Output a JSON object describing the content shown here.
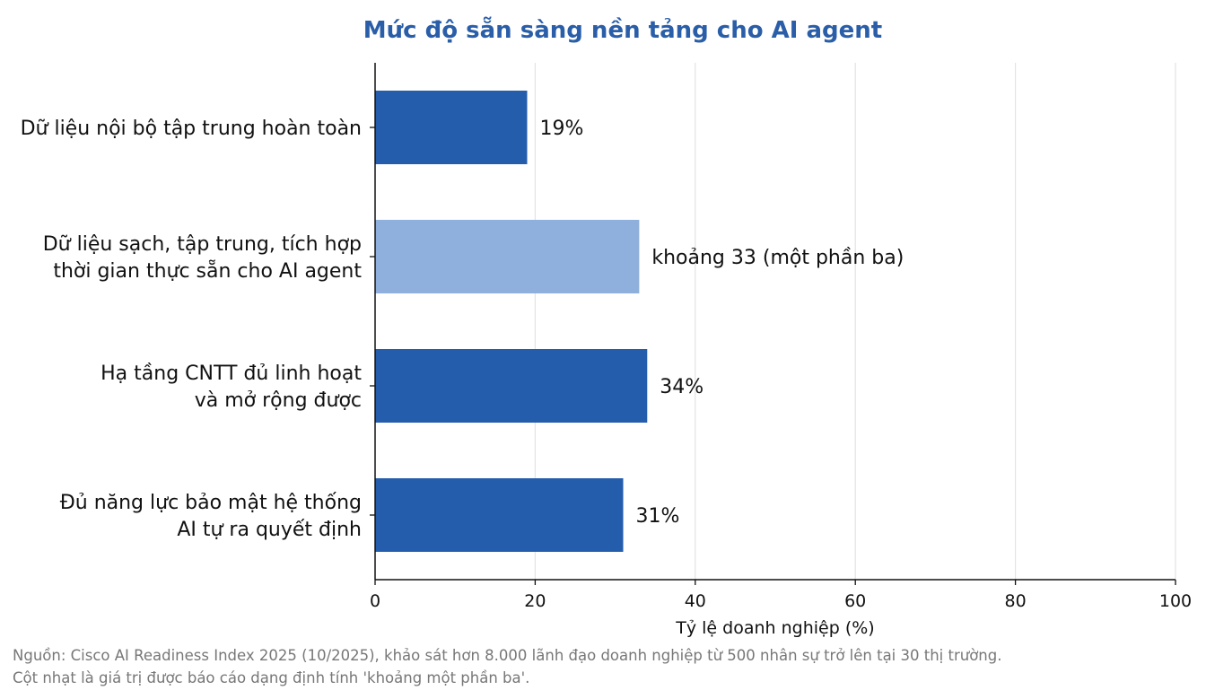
{
  "chart_data": {
    "type": "bar",
    "orientation": "horizontal",
    "title": "Mức độ sẵn sàng nền tảng cho AI agent",
    "categories": [
      [
        "Dữ liệu nội bộ tập trung hoàn toàn"
      ],
      [
        "Dữ liệu sạch, tập trung, tích hợp",
        "thời gian thực sẵn cho AI agent"
      ],
      [
        "Hạ tầng CNTT đủ linh hoạt",
        "và mở rộng được"
      ],
      [
        "Đủ năng lực bảo mật hệ thống",
        "AI tự ra quyết định"
      ]
    ],
    "values": [
      19,
      33,
      34,
      31
    ],
    "value_labels": [
      "19%",
      "khoảng 33 (một phần ba)",
      "34%",
      "31%"
    ],
    "bar_colors": [
      "#245dab",
      "#8fb0dc",
      "#245dab",
      "#245dab"
    ],
    "xlabel": "Tỷ lệ doanh nghiệp (%)",
    "ylabel": "",
    "xlim": [
      0,
      100
    ],
    "xticks": [
      0,
      20,
      40,
      60,
      80,
      100
    ],
    "grid": "vertical",
    "notes": [
      "Nguồn: Cisco AI Readiness Index 2025 (10/2025), khảo sát hơn 8.000 lãnh đạo doanh nghiệp từ 500 nhân sự trở lên tại 30 thị trường.",
      "Cột nhạt là giá trị được báo cáo dạng định tính 'khoảng một phần ba'."
    ]
  }
}
